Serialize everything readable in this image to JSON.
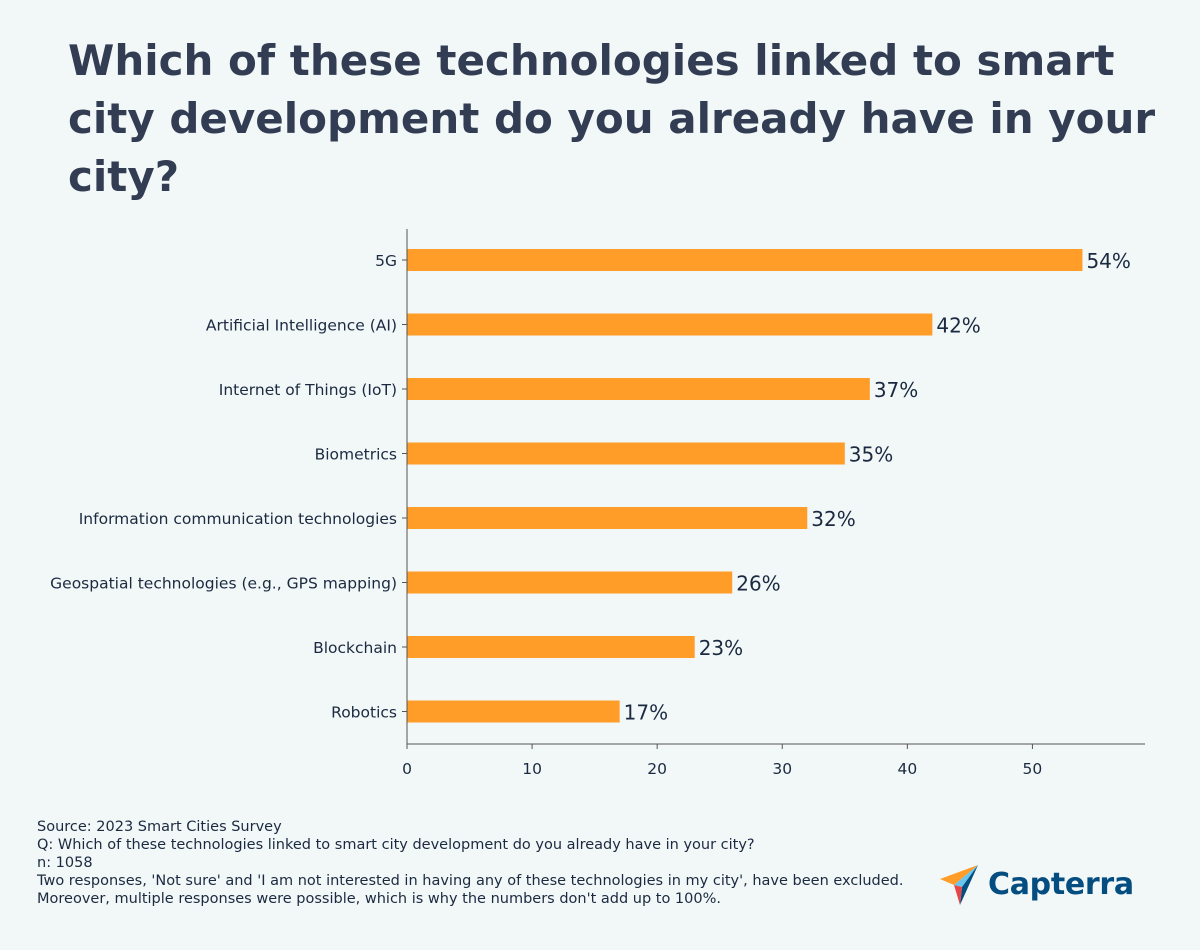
{
  "title": "Which of these technologies linked to smart city development do you already have in your city?",
  "chart_data": {
    "type": "bar",
    "orientation": "horizontal",
    "categories": [
      "5G",
      "Artificial Intelligence (AI)",
      "Internet of Things (IoT)",
      "Biometrics",
      "Information communication technologies",
      "Geospatial technologies (e.g., GPS mapping)",
      "Blockchain",
      "Robotics"
    ],
    "values": [
      54,
      42,
      37,
      35,
      32,
      26,
      23,
      17
    ],
    "value_labels": [
      "54%",
      "42%",
      "37%",
      "35%",
      "32%",
      "26%",
      "23%",
      "17%"
    ],
    "xlim": [
      0,
      59
    ],
    "xticks": [
      0,
      10,
      20,
      30,
      40,
      50
    ],
    "bar_color": "#ff9d28",
    "text_color": "#1b2a41",
    "xlabel": "",
    "ylabel": "",
    "grid": false
  },
  "footnote": {
    "source": "Source: 2023 Smart Cities Survey",
    "question": "Q: Which of these technologies linked to smart city development do you already have in your city?",
    "n": "n: 1058",
    "exclusion": "Two responses, 'Not sure' and 'I am not interested in having any of these technologies in my city', have been excluded.",
    "note": "Moreover, multiple responses were possible, which is why the numbers don't add up to 100%."
  },
  "brand": {
    "name": "Capterra",
    "color": "#044d80"
  }
}
